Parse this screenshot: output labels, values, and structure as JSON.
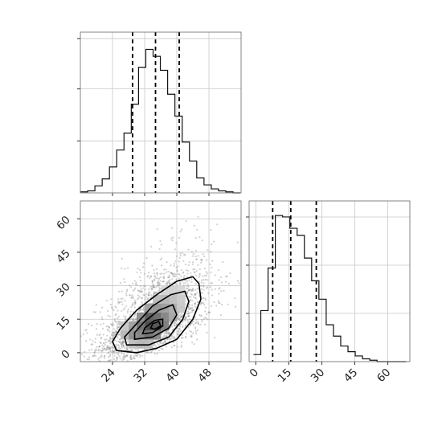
{
  "chart_data": [
    {
      "panel": "marginal-x",
      "type": "histogram",
      "title": "",
      "xlabel": "",
      "ylabel": "",
      "xlim": [
        16,
        56
      ],
      "bins": {
        "start": 16,
        "width": 1.81
      },
      "counts": [
        1,
        2,
        7,
        14,
        26,
        43,
        60,
        89,
        126,
        144,
        137,
        123,
        99,
        77,
        51,
        32,
        15,
        8,
        4,
        2,
        1,
        0
      ],
      "quantiles": [
        29.0,
        34.7,
        40.6
      ],
      "grid": true
    },
    {
      "panel": "joint",
      "type": "scatter+contour",
      "title": "",
      "xlabel": "",
      "ylabel": "",
      "xlim": [
        16,
        56
      ],
      "ylim": [
        -4,
        68
      ],
      "xticks": [
        24,
        32,
        40,
        48
      ],
      "yticks": [
        0,
        15,
        30,
        45,
        60
      ],
      "center": [
        34.5,
        13
      ],
      "density_cells": [
        {
          "x": 33,
          "y": 12,
          "level": 0.95
        },
        {
          "x": 35,
          "y": 12,
          "level": 0.9
        },
        {
          "x": 33,
          "y": 16,
          "level": 0.85
        },
        {
          "x": 35,
          "y": 16,
          "level": 0.75
        },
        {
          "x": 31,
          "y": 12,
          "level": 0.7
        },
        {
          "x": 29,
          "y": 8,
          "level": 0.55
        },
        {
          "x": 31,
          "y": 8,
          "level": 0.6
        },
        {
          "x": 33,
          "y": 8,
          "level": 0.7
        },
        {
          "x": 35,
          "y": 8,
          "level": 0.6
        },
        {
          "x": 37,
          "y": 12,
          "level": 0.65
        },
        {
          "x": 37,
          "y": 16,
          "level": 0.6
        },
        {
          "x": 31,
          "y": 16,
          "level": 0.55
        },
        {
          "x": 35,
          "y": 20,
          "level": 0.5
        },
        {
          "x": 37,
          "y": 20,
          "level": 0.45
        },
        {
          "x": 33,
          "y": 20,
          "level": 0.45
        },
        {
          "x": 39,
          "y": 20,
          "level": 0.35
        },
        {
          "x": 39,
          "y": 24,
          "level": 0.25
        },
        {
          "x": 37,
          "y": 24,
          "level": 0.3
        },
        {
          "x": 35,
          "y": 24,
          "level": 0.28
        },
        {
          "x": 39,
          "y": 16,
          "level": 0.4
        },
        {
          "x": 29,
          "y": 12,
          "level": 0.45
        },
        {
          "x": 27,
          "y": 8,
          "level": 0.3
        },
        {
          "x": 29,
          "y": 4,
          "level": 0.25
        },
        {
          "x": 31,
          "y": 4,
          "level": 0.3
        },
        {
          "x": 33,
          "y": 4,
          "level": 0.28
        },
        {
          "x": 41,
          "y": 24,
          "level": 0.18
        },
        {
          "x": 41,
          "y": 28,
          "level": 0.12
        },
        {
          "x": 39,
          "y": 28,
          "level": 0.15
        },
        {
          "x": 37,
          "y": 28,
          "level": 0.12
        },
        {
          "x": 27,
          "y": 12,
          "level": 0.2
        },
        {
          "x": 41,
          "y": 20,
          "level": 0.2
        }
      ],
      "contours": [
        [
          [
            25,
            1
          ],
          [
            24,
            5
          ],
          [
            26,
            11
          ],
          [
            30,
            19
          ],
          [
            35,
            26
          ],
          [
            40,
            32
          ],
          [
            44,
            34
          ],
          [
            45.5,
            31
          ],
          [
            46,
            24
          ],
          [
            44,
            15
          ],
          [
            40,
            6
          ],
          [
            35,
            2
          ],
          [
            30,
            0
          ],
          [
            25,
            1
          ]
        ],
        [
          [
            27.5,
            3.5
          ],
          [
            27,
            7
          ],
          [
            30,
            13
          ],
          [
            34,
            21
          ],
          [
            38.5,
            26
          ],
          [
            42,
            27.5
          ],
          [
            43,
            23
          ],
          [
            41.5,
            15
          ],
          [
            38,
            7
          ],
          [
            33,
            3.5
          ],
          [
            27.5,
            3.5
          ]
        ],
        [
          [
            29.5,
            6
          ],
          [
            29.5,
            9
          ],
          [
            32,
            14
          ],
          [
            35.5,
            19
          ],
          [
            39,
            21.5
          ],
          [
            40,
            17
          ],
          [
            38,
            11
          ],
          [
            34,
            7
          ],
          [
            29.5,
            6
          ]
        ],
        [
          [
            31.5,
            8.5
          ],
          [
            32,
            11
          ],
          [
            34.5,
            14.5
          ],
          [
            36.5,
            15
          ],
          [
            36.5,
            12
          ],
          [
            34,
            9
          ],
          [
            31.5,
            8.5
          ]
        ],
        [
          [
            33.5,
            11
          ],
          [
            34,
            13
          ],
          [
            35.5,
            14
          ],
          [
            36,
            12
          ],
          [
            34.5,
            10.5
          ],
          [
            33.5,
            11
          ]
        ]
      ],
      "scatter_sigma": [
        7.2,
        11.5
      ],
      "scatter_correlation": 0.55,
      "scatter_count": 2000,
      "grid": true
    },
    {
      "panel": "marginal-y",
      "type": "histogram",
      "title": "",
      "xlabel": "",
      "ylabel": "",
      "xlim": [
        -3,
        70
      ],
      "xticks": [
        0,
        15,
        30,
        45,
        60
      ],
      "bins": {
        "start": -1,
        "width": 3.3
      },
      "counts": [
        5,
        36,
        66,
        103,
        102,
        94,
        89,
        73,
        57,
        44,
        26,
        18,
        11,
        7,
        4,
        2,
        1,
        0,
        0,
        0,
        0
      ],
      "quantiles": [
        7.7,
        15.9,
        27.5
      ],
      "grid": true
    }
  ]
}
